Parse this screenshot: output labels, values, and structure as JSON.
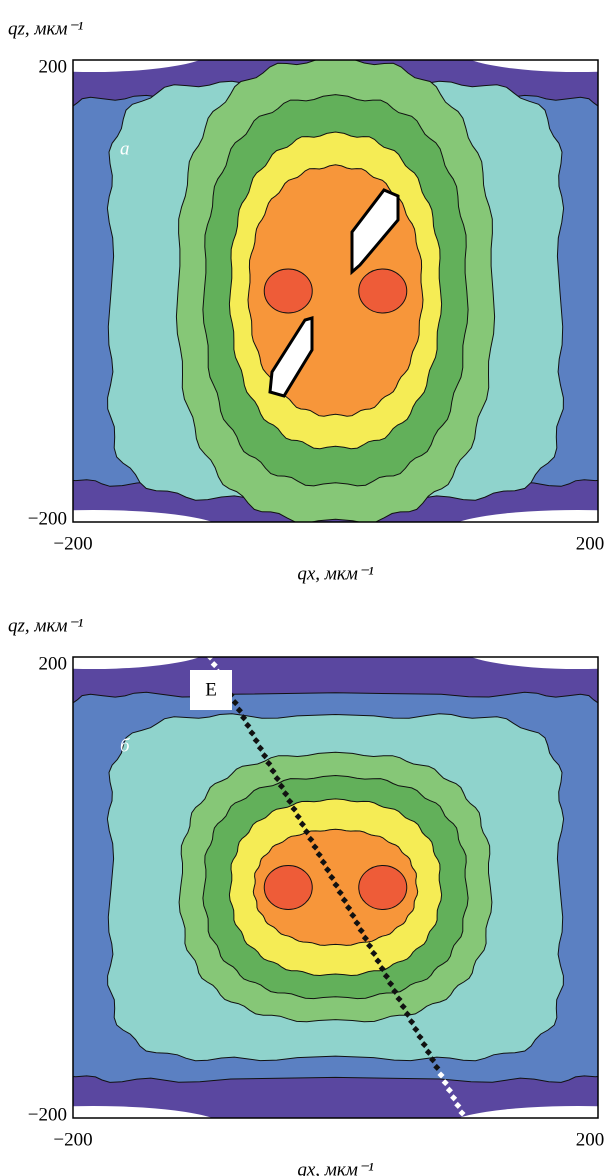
{
  "chart_data": [
    {
      "type": "contour",
      "panel_label": "а",
      "x_label": "qx, мкм⁻¹",
      "y_label": "qz, мкм⁻¹",
      "xlim": [
        -200,
        200
      ],
      "ylim": [
        -200,
        200
      ],
      "xticks": [
        {
          "value": -200,
          "label": "−200"
        },
        200
      ],
      "yticks": [
        {
          "value": -200,
          "label": "−200"
        },
        200
      ]
    },
    {
      "type": "contour",
      "panel_label": "б",
      "annotation": "E",
      "x_label": "qx, мкм⁻¹",
      "y_label": "qz, мкм⁻¹",
      "xlim": [
        -200,
        200
      ],
      "ylim": [
        -200,
        200
      ],
      "xticks": [
        {
          "value": -200,
          "label": "−200"
        },
        200
      ],
      "yticks": [
        {
          "value": -200,
          "label": "−200"
        },
        200
      ]
    }
  ]
}
